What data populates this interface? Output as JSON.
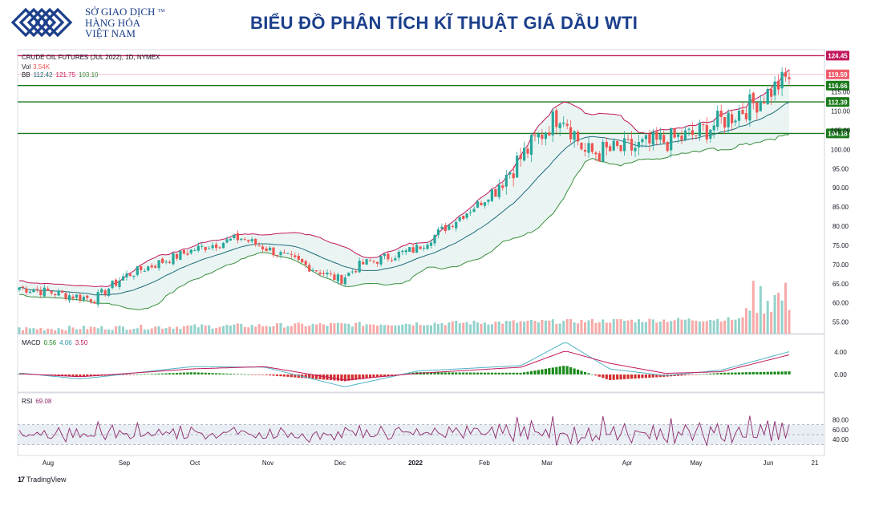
{
  "header": {
    "logo_line1": "SỞ GIAO DỊCH",
    "logo_line2": "HÀNG HÓA",
    "logo_line3": "VIỆT NAM",
    "logo_tm": "TM",
    "title": "BIỂU ĐỒ PHÂN TÍCH KĨ THUẬT GIÁ DẦU WTI"
  },
  "legend": {
    "symbol": "CRUDE OIL FUTURES (JUL 2022), 1D, NYMEX",
    "vol_label": "Vol",
    "vol_value": "3.54K",
    "bb_label": "BB",
    "bb_basis": "112.42",
    "bb_upper": "121.75",
    "bb_lower": "103.10",
    "macd_label": "MACD",
    "macd_hist": "0.56",
    "macd_line": "4.06",
    "macd_signal": "3.50",
    "rsi_label": "RSI",
    "rsi_value": "69.08"
  },
  "footer": {
    "brand_mark": "17",
    "brand": "TradingView"
  },
  "colors": {
    "up": "#26a69a",
    "down": "#ef5350",
    "bb_upper": "#c2185b",
    "bb_lower": "#388e3c",
    "bb_basis": "#1e6b7a",
    "bb_fill": "#e3f1ef",
    "level_red": "#c2185b",
    "level_green": "#1b7a1b",
    "macd_line": "#4fb3c7",
    "macd_signal": "#c2185b",
    "hist_up": "#1b8a1b",
    "hist_down": "#d32f2f",
    "rsi_line": "#8e2a6b",
    "rsi_band": "#e9eef4"
  },
  "chart_data": {
    "type": "candlestick",
    "price_axis_ticks": [
      55,
      60,
      65,
      70,
      75,
      80,
      85,
      90,
      95,
      100,
      105,
      110,
      115
    ],
    "price_ylim": [
      52,
      126
    ],
    "x_axis_labels": [
      "Aug",
      "Sep",
      "Oct",
      "Nov",
      "Dec",
      "2022",
      "Feb",
      "Mar",
      "Apr",
      "May",
      "Jun",
      "21"
    ],
    "horizontal_levels": [
      {
        "value": 124.45,
        "label": "124.45",
        "color": "red"
      },
      {
        "value": 119.59,
        "label": "119.59",
        "color": "red-current"
      },
      {
        "value": 116.66,
        "label": "116.66",
        "color": "green"
      },
      {
        "value": 112.39,
        "label": "112.39",
        "color": "green"
      },
      {
        "value": 104.18,
        "label": "104.18",
        "color": "green"
      }
    ],
    "close_anchors": [
      {
        "label": "Aug",
        "value": 64
      },
      {
        "label": "mid-Aug",
        "value": 61
      },
      {
        "label": "Sep",
        "value": 67
      },
      {
        "label": "Oct",
        "value": 74
      },
      {
        "label": "late-Oct",
        "value": 77
      },
      {
        "label": "Nov",
        "value": 74
      },
      {
        "label": "Dec",
        "value": 66
      },
      {
        "label": "mid-Dec",
        "value": 70
      },
      {
        "label": "2022",
        "value": 74
      },
      {
        "label": "Feb",
        "value": 87
      },
      {
        "label": "Mar",
        "value": 110
      },
      {
        "label": "mid-Mar",
        "value": 99
      },
      {
        "label": "Apr",
        "value": 100
      },
      {
        "label": "May",
        "value": 104
      },
      {
        "label": "late-May",
        "value": 112
      },
      {
        "label": "Jun",
        "value": 119
      }
    ],
    "macd_ticks": [
      0.0,
      4.0
    ],
    "rsi_ticks": [
      40.0,
      60.0,
      80.0
    ],
    "rsi_band": [
      30,
      70
    ],
    "macd": {
      "hist": 0.56,
      "macd": 4.06,
      "signal": 3.5
    },
    "rsi": 69.08
  }
}
